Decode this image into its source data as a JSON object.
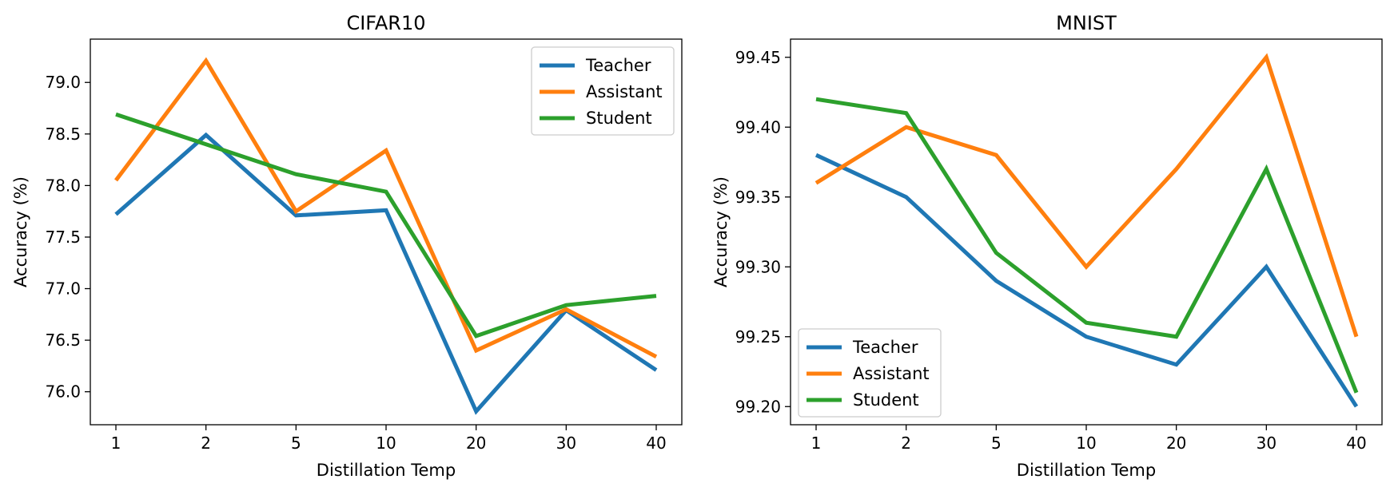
{
  "chart_data": [
    {
      "type": "line",
      "title": "CIFAR10",
      "xlabel": "Distillation Temp",
      "ylabel": "Accuracy (%)",
      "categories": [
        "1",
        "2",
        "5",
        "10",
        "20",
        "30",
        "40"
      ],
      "ylim": [
        75.68,
        79.42
      ],
      "yticks": [
        "76.0",
        "76.5",
        "77.0",
        "77.5",
        "78.0",
        "78.5",
        "79.0"
      ],
      "grid": false,
      "legend": "top-right",
      "series": [
        {
          "name": "Teacher",
          "color": "#1f77b4",
          "values": [
            77.72,
            78.49,
            77.71,
            77.76,
            75.81,
            76.79,
            76.21
          ]
        },
        {
          "name": "Assistant",
          "color": "#ff7f0e",
          "values": [
            78.05,
            79.21,
            77.75,
            78.34,
            76.4,
            76.8,
            76.34
          ]
        },
        {
          "name": "Student",
          "color": "#2ca02c",
          "values": [
            78.69,
            78.4,
            78.11,
            77.94,
            76.54,
            76.84,
            76.93
          ]
        }
      ]
    },
    {
      "type": "line",
      "title": "MNIST",
      "xlabel": "Distillation Temp",
      "ylabel": "Accuracy (%)",
      "categories": [
        "1",
        "2",
        "5",
        "10",
        "20",
        "30",
        "40"
      ],
      "ylim": [
        99.187,
        99.463
      ],
      "yticks": [
        "99.20",
        "99.25",
        "99.30",
        "99.35",
        "99.40",
        "99.45"
      ],
      "grid": false,
      "legend": "bottom-left",
      "series": [
        {
          "name": "Teacher",
          "color": "#1f77b4",
          "values": [
            99.38,
            99.35,
            99.29,
            99.25,
            99.23,
            99.3,
            99.2
          ]
        },
        {
          "name": "Assistant",
          "color": "#ff7f0e",
          "values": [
            99.36,
            99.4,
            99.38,
            99.3,
            99.37,
            99.45,
            99.25
          ]
        },
        {
          "name": "Student",
          "color": "#2ca02c",
          "values": [
            99.42,
            99.41,
            99.31,
            99.26,
            99.25,
            99.37,
            99.21
          ]
        }
      ]
    }
  ]
}
